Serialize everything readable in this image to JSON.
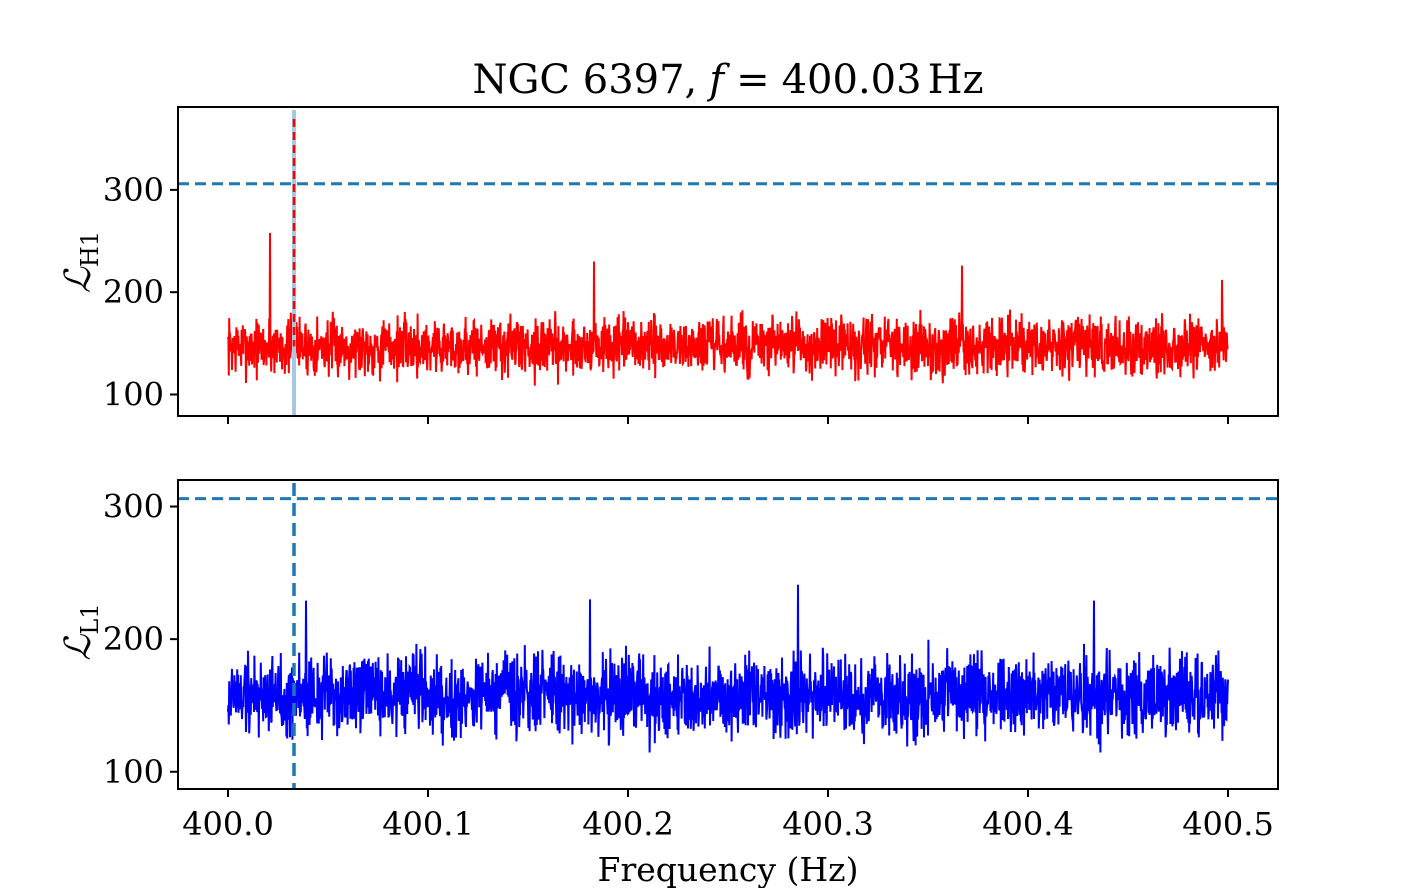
{
  "figure": {
    "title": "NGC 6397, f = 400.03 Hz",
    "title_parts": {
      "name": "NGC 6397,",
      "var": "f",
      "eq": "=",
      "value": "400.03",
      "unit": "Hz"
    }
  },
  "colors": {
    "h1_series": "#ff0000",
    "l1_series": "#0000ff",
    "threshold": "#1f77b4",
    "marker_top": "#a6c8e0",
    "marker_bottom": "#1f77b4",
    "axes": "#000000"
  },
  "chart_data": [
    {
      "type": "line",
      "panel": "top",
      "xlabel": "",
      "ylabel": "ℒ_H1",
      "ylabel_main": "ℒ",
      "ylabel_sub": "H1",
      "xlim": [
        399.975,
        400.525
      ],
      "ylim": [
        79,
        381
      ],
      "xticks": [
        400.0,
        400.1,
        400.2,
        400.3,
        400.4,
        400.5
      ],
      "xtick_labels_visible": false,
      "yticks": [
        100,
        200,
        300
      ],
      "ytick_labels": [
        "100",
        "200",
        "300"
      ],
      "grid": false,
      "series": [
        {
          "color": "#ff0000",
          "x_range": [
            400.0,
            400.5
          ],
          "baseline": 147,
          "noise_amplitude": 42,
          "point_count": 2500,
          "peaks": [
            {
              "x": 400.033,
              "y": 372
            },
            {
              "x": 400.021,
              "y": 258
            },
            {
              "x": 400.367,
              "y": 226
            },
            {
              "x": 400.183,
              "y": 230
            },
            {
              "x": 400.497,
              "y": 212
            }
          ],
          "min_value": 94,
          "max_value": 372
        }
      ],
      "threshold_line": {
        "y": 306,
        "style": "dashed"
      },
      "vertical_marker": {
        "x": 400.033,
        "style": "dashed"
      }
    },
    {
      "type": "line",
      "panel": "bottom",
      "xlabel": "Frequency (Hz)",
      "ylabel": "ℒ_L1",
      "ylabel_main": "ℒ",
      "ylabel_sub": "L1",
      "xlim": [
        399.975,
        400.525
      ],
      "ylim": [
        87,
        320
      ],
      "xticks": [
        400.0,
        400.1,
        400.2,
        400.3,
        400.4,
        400.5
      ],
      "xtick_labels": [
        "400.0",
        "400.1",
        "400.2",
        "400.3",
        "400.4",
        "400.5"
      ],
      "yticks": [
        100,
        200,
        300
      ],
      "ytick_labels": [
        "100",
        "200",
        "300"
      ],
      "grid": false,
      "series": [
        {
          "color": "#0000ff",
          "x_range": [
            400.0,
            400.5
          ],
          "baseline": 158,
          "noise_amplitude": 45,
          "point_count": 2500,
          "peaks": [
            {
              "x": 400.285,
              "y": 241
            },
            {
              "x": 400.433,
              "y": 229
            },
            {
              "x": 400.181,
              "y": 230
            },
            {
              "x": 400.039,
              "y": 229
            }
          ],
          "min_value": 97,
          "max_value": 241
        }
      ],
      "threshold_line": {
        "y": 306,
        "style": "dashed"
      },
      "vertical_marker": {
        "x": 400.033,
        "style": "dashed"
      }
    }
  ]
}
